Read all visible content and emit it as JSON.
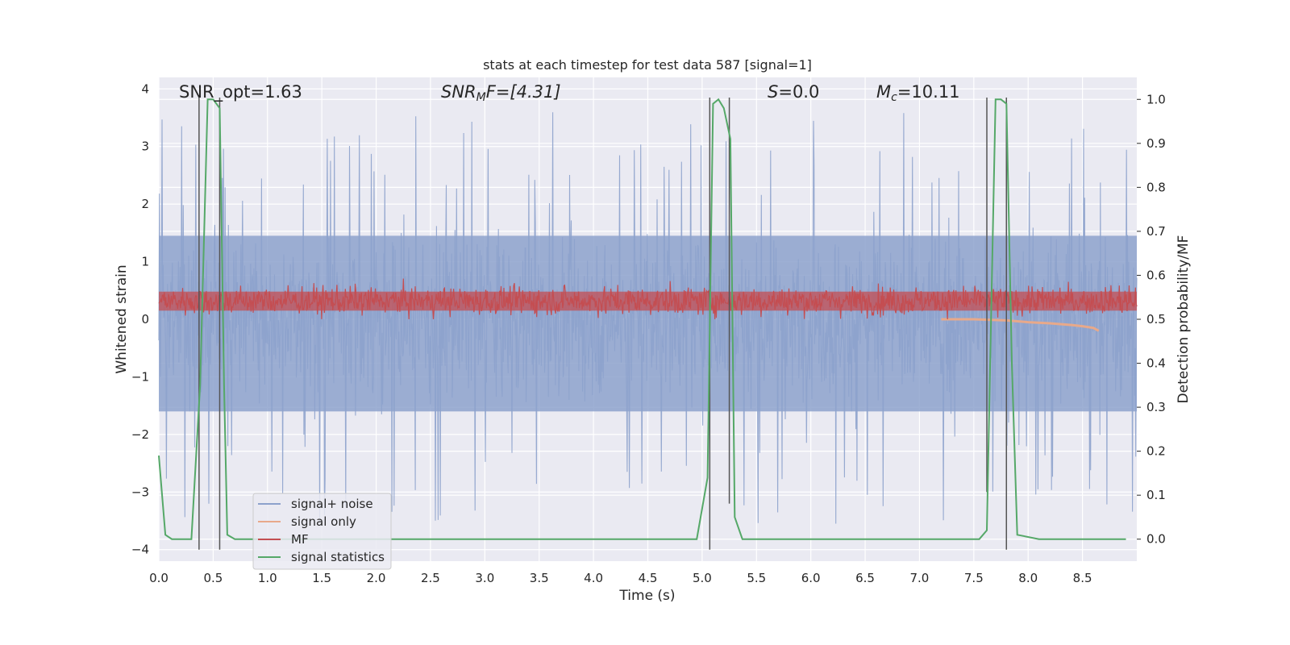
{
  "chart_data": {
    "type": "line",
    "title": "stats at each timestep for test data 587 [signal=1]",
    "xlabel": "Time (s)",
    "ylabel_left": "Whitened strain",
    "ylabel_right": "Detection probability/MF",
    "xlim": [
      0,
      9.0
    ],
    "ylim_left": [
      -4.2,
      4.2
    ],
    "ylim_right": [
      -0.05,
      1.05
    ],
    "xticks": [
      "0.0",
      "0.5",
      "1.0",
      "1.5",
      "2.0",
      "2.5",
      "3.0",
      "3.5",
      "4.0",
      "4.5",
      "5.0",
      "5.5",
      "6.0",
      "6.5",
      "7.0",
      "7.5",
      "8.0",
      "8.5"
    ],
    "yticks_left": [
      "4",
      "3",
      "2",
      "1",
      "0",
      "−1",
      "−2",
      "−3",
      "−4"
    ],
    "yticks_right": [
      "1.0",
      "0.9",
      "0.8",
      "0.7",
      "0.6",
      "0.5",
      "0.4",
      "0.3",
      "0.2",
      "0.1",
      "0.0"
    ],
    "grid": true,
    "legend_position": "lower-left",
    "annotations": {
      "snr_opt": "SNR_opt=1.63",
      "snr_mf_main": "SNR",
      "snr_mf_sub": "M",
      "snr_mf_rest": "F=[4.31]",
      "s_main": "S",
      "s_rest": "=0.0",
      "mc_main": "M",
      "mc_sub": "c",
      "mc_rest": "=10.11"
    },
    "series": [
      {
        "name": "signal+ noise",
        "color": "#8da2cc",
        "style": "noise band about 0, amplitude about ±1.7 with spikes to ±3.5"
      },
      {
        "name": "signal only",
        "color": "#e8a98a",
        "x": [
          7.2,
          7.5,
          7.8,
          8.0,
          8.2,
          8.4,
          8.5,
          8.6,
          8.65
        ],
        "y": [
          0.0,
          0.0,
          -0.02,
          -0.05,
          -0.07,
          -0.1,
          -0.12,
          -0.15,
          -0.2
        ]
      },
      {
        "name": "MF",
        "color": "#c44e52",
        "style": "noise band between about 0 and 0.7 (left axis)"
      },
      {
        "name": "signal statistics",
        "color": "#55a868",
        "x": [
          0.0,
          0.06,
          0.12,
          0.3,
          0.38,
          0.45,
          0.5,
          0.56,
          0.6,
          0.63,
          0.7,
          0.9,
          4.95,
          5.05,
          5.1,
          5.15,
          5.2,
          5.26,
          5.3,
          5.37,
          5.5,
          7.55,
          7.62,
          7.65,
          7.7,
          7.75,
          7.8,
          7.85,
          7.9,
          8.1,
          8.9
        ],
        "y": [
          0.19,
          0.01,
          0.0,
          0.0,
          0.35,
          1.0,
          1.0,
          0.98,
          0.35,
          0.01,
          0.0,
          0.0,
          0.0,
          0.14,
          0.99,
          1.0,
          0.98,
          0.91,
          0.05,
          0.0,
          0.0,
          0.0,
          0.02,
          0.4,
          1.0,
          1.0,
          0.99,
          0.4,
          0.01,
          0.0,
          0.0
        ]
      }
    ],
    "vertical_markers": [
      {
        "x": 0.37,
        "ymin": -4,
        "ymax": 3.85,
        "color": "#555555"
      },
      {
        "x": 0.56,
        "ymin": -4,
        "ymax": 3.85,
        "color": "#555555"
      },
      {
        "x": 5.07,
        "ymin": -4,
        "ymax": 3.85,
        "color": "#555555"
      },
      {
        "x": 5.25,
        "ymin": -3.2,
        "ymax": 3.85,
        "color": "#555555"
      },
      {
        "x": 7.62,
        "ymin": -3.0,
        "ymax": 3.85,
        "color": "#555555"
      },
      {
        "x": 7.8,
        "ymin": -4,
        "ymax": 3.85,
        "color": "#555555"
      }
    ]
  },
  "colors": {
    "axes_bg": "#eaeaf2",
    "grid": "#ffffff",
    "noise": "#8da2cc",
    "mf": "#c44e52",
    "signal_only": "#e8a98a",
    "stats": "#55a868",
    "marker": "#555555"
  }
}
